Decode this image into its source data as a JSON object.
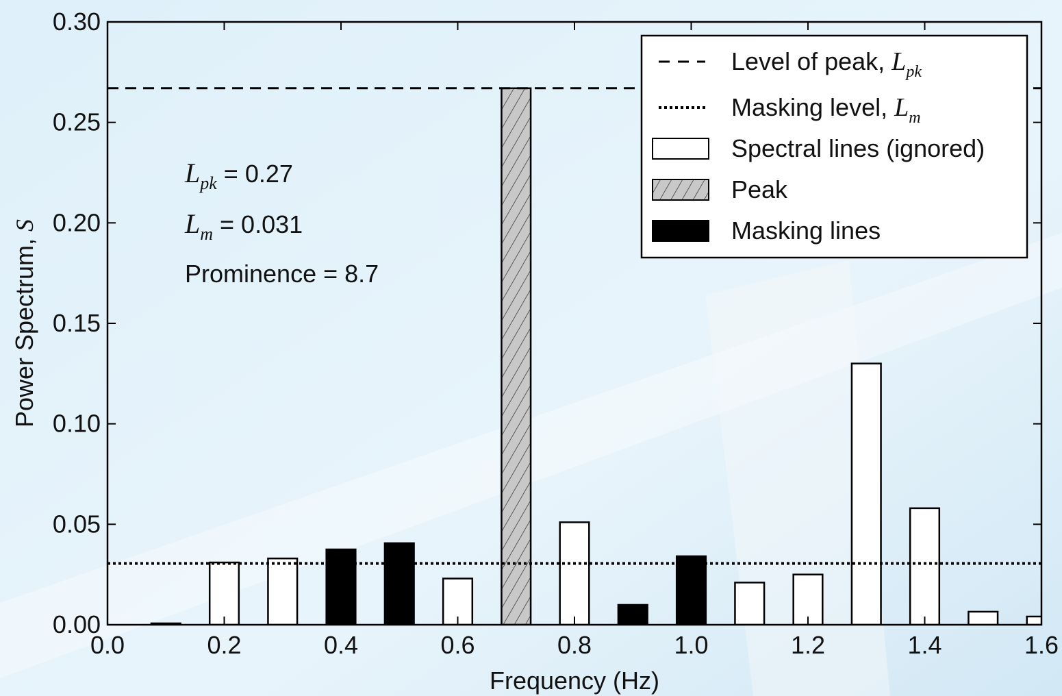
{
  "chart_data": {
    "type": "bar",
    "xlabel": "Frequency (Hz)",
    "ylabel": {
      "text": "Power Spectrum, ",
      "symbol": "S"
    },
    "xlim": [
      0,
      1.6
    ],
    "ylim": [
      0,
      0.3
    ],
    "xticks": [
      {
        "value": 0,
        "label": "0.0"
      },
      0.2,
      0.4,
      0.6,
      0.8,
      {
        "value": 1,
        "label": "1.0"
      },
      1.2,
      1.4,
      1.6
    ],
    "yticks": [
      {
        "value": 0,
        "label": "0.00"
      },
      0.05,
      {
        "value": 0.1,
        "label": "0.10"
      },
      0.15,
      {
        "value": 0.2,
        "label": "0.20"
      },
      0.25,
      {
        "value": 0.3,
        "label": "0.30"
      }
    ],
    "bar_width": 0.05,
    "hlines": [
      {
        "name": "Level of peak, ",
        "symbol": "L",
        "subscript": "pk",
        "value": 0.267,
        "style": "dashed",
        "color": "#000000"
      },
      {
        "name": "Masking level, ",
        "symbol": "L",
        "subscript": "m",
        "value": 0.0305,
        "style": "dotted",
        "color": "#000000"
      }
    ],
    "series": [
      {
        "name": "Spectral lines (ignored)",
        "color": "#ffffff",
        "hatch": false,
        "x": [
          0.2,
          0.3,
          0.6,
          0.8,
          1.1,
          1.2,
          1.3,
          1.4,
          1.5,
          1.6
        ],
        "values": [
          0.031,
          0.033,
          0.023,
          0.051,
          0.021,
          0.025,
          0.13,
          0.058,
          0.0065,
          0.0041
        ]
      },
      {
        "name": "Peak",
        "color": "#c8c8c8",
        "hatch": true,
        "x": [
          0.7
        ],
        "values": [
          0.267
        ]
      },
      {
        "name": "Masking lines",
        "color": "#000000",
        "hatch": false,
        "x": [
          0.1,
          0.4,
          0.5,
          0.9,
          1.0
        ],
        "values": [
          0.0007,
          0.0375,
          0.0406,
          0.0099,
          0.0341
        ]
      }
    ],
    "annotations": [
      {
        "symbol": "L",
        "subscript": "pk",
        "text": " = 0.27"
      },
      {
        "symbol": "L",
        "subscript": "m",
        "text": "  = 0.031"
      },
      {
        "text": "Prominence = 8.7"
      }
    ],
    "legend": "upper right"
  }
}
